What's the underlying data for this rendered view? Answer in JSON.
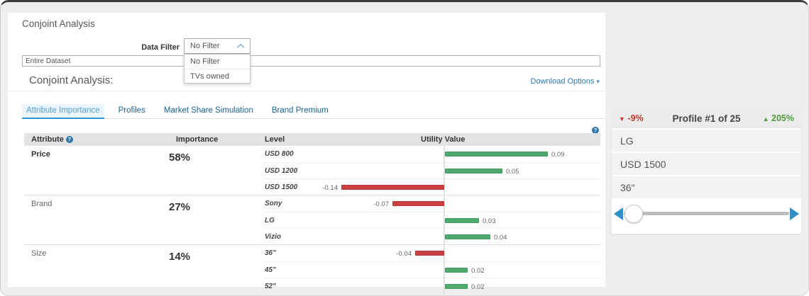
{
  "page": {
    "title": "Conjoint Analysis",
    "section_title": "Conjoint Analysis:",
    "download_options_label": "Download Options",
    "data_filter": {
      "label": "Data Filter",
      "selected": "No Filter",
      "options": [
        "No Filter",
        "TVs owned"
      ]
    },
    "dataset_input": {
      "value": "Entire Dataset"
    }
  },
  "tabs": [
    {
      "label": "Attribute Importance",
      "active": true
    },
    {
      "label": "Profiles",
      "active": false
    },
    {
      "label": "Market Share Simulation",
      "active": false
    },
    {
      "label": "Brand Premium",
      "active": false
    }
  ],
  "chart_data": {
    "type": "bar",
    "orientation": "horizontal-diverging",
    "columns": [
      "Attribute",
      "Importance",
      "Level",
      "Utility Value"
    ],
    "groups": [
      {
        "attribute": "Price",
        "importance": "58%",
        "emphasized": true,
        "levels": [
          {
            "level": "USD 800",
            "value": 0.09
          },
          {
            "level": "USD 1200",
            "value": 0.05
          },
          {
            "level": "USD 1500",
            "value": -0.14
          }
        ]
      },
      {
        "attribute": "Brand",
        "importance": "27%",
        "emphasized": false,
        "levels": [
          {
            "level": "Sony",
            "value": -0.07
          },
          {
            "level": "LG",
            "value": 0.03
          },
          {
            "level": "Vizio",
            "value": 0.04
          }
        ]
      },
      {
        "attribute": "Size",
        "importance": "14%",
        "emphasized": false,
        "levels": [
          {
            "level": "36\"",
            "value": -0.04
          },
          {
            "level": "45\"",
            "value": 0.02
          },
          {
            "level": "52\"",
            "value": 0.02
          }
        ]
      }
    ],
    "colors": {
      "positive": "#4fa86d",
      "negative": "#cb4142"
    },
    "value_axis": {
      "max_positive": 0.09,
      "max_negative": -0.14
    }
  },
  "profile_card": {
    "decrease": "-9%",
    "title": "Profile #1 of 25",
    "increase": "205%",
    "values": [
      "LG",
      "USD 1500",
      "36\""
    ],
    "slider_position_pct": 6
  },
  "icons": {
    "select_chevron": "chevron-up-icon",
    "download_caret": "▾",
    "help": "?",
    "decrease_triangle": "▼",
    "increase_triangle": "▲"
  }
}
